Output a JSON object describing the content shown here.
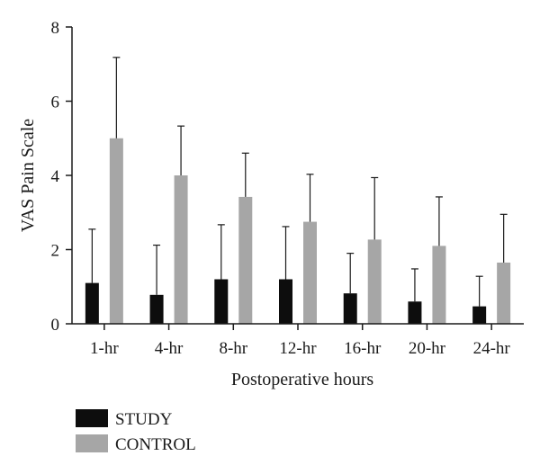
{
  "chart_data": {
    "type": "bar",
    "title": "",
    "xlabel": "Postoperative hours",
    "ylabel": "VAS Pain Scale",
    "categories": [
      "1-hr",
      "4-hr",
      "8-hr",
      "12-hr",
      "16-hr",
      "20-hr",
      "24-hr"
    ],
    "ylim": [
      0,
      8
    ],
    "yticks": [
      "0",
      "2",
      "4",
      "6",
      "8"
    ],
    "grid": false,
    "legend_position": "bottom-left",
    "series": [
      {
        "name": "STUDY",
        "color": "#0d0d0d",
        "values": [
          1.1,
          0.78,
          1.2,
          1.2,
          0.82,
          0.6,
          0.47
        ],
        "error_upper": [
          2.55,
          2.12,
          2.67,
          2.62,
          1.9,
          1.48,
          1.28
        ]
      },
      {
        "name": "CONTROL",
        "color": "#a6a6a6",
        "values": [
          5.0,
          4.0,
          3.42,
          2.75,
          2.27,
          2.1,
          1.65
        ],
        "error_upper": [
          7.18,
          5.33,
          4.6,
          4.03,
          3.94,
          3.42,
          2.95
        ]
      }
    ]
  }
}
